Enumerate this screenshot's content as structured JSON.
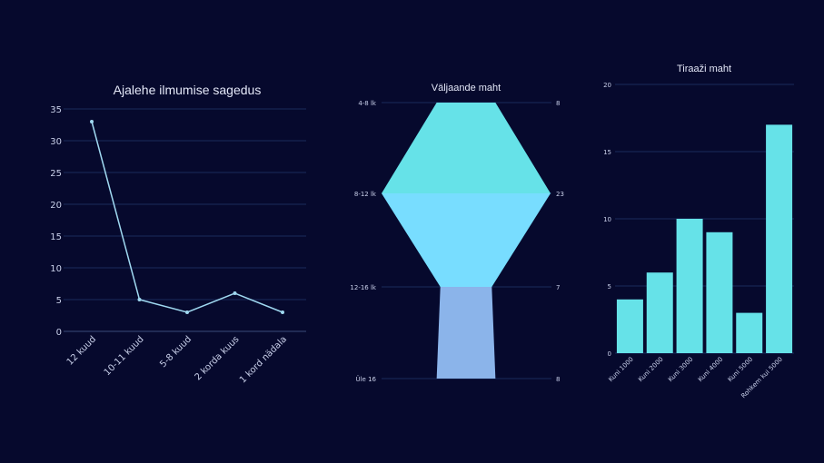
{
  "chart_data": [
    {
      "type": "line",
      "title": "Ajalehe ilmumise sagedus",
      "categories": [
        "12 kuud",
        "10-11 kuud",
        "5-8 kuud",
        "2 korda kuus",
        "1 kord nädala"
      ],
      "series": [
        {
          "values": [
            33,
            5,
            3,
            6,
            3
          ]
        }
      ],
      "yticks": [
        "0",
        "5",
        "10",
        "15",
        "20",
        "25",
        "30",
        "35"
      ],
      "ylim": [
        0,
        35
      ],
      "grid": true,
      "colors": {
        "line": "#9fd8f0",
        "grid": "#1a2a5a"
      }
    },
    {
      "type": "area",
      "title": "Väljaande maht",
      "categories": [
        "4-8 lk",
        "8-12 lk",
        "12-16 lk",
        "Üle 16"
      ],
      "values": [
        8,
        23,
        7,
        8
      ],
      "colors": {
        "upper": "#66e2e8",
        "middle": "#78ddff",
        "lower": "#8bb4ea"
      }
    },
    {
      "type": "bar",
      "title": "Tiraaži maht",
      "categories": [
        "Kuni 1000",
        "Kuni 2000",
        "Kuni 3000",
        "Kuni 4000",
        "Kuni 5000",
        "Rohkem kui 5000"
      ],
      "values": [
        4,
        6,
        10,
        9,
        3,
        17
      ],
      "yticks": [
        "0",
        "5",
        "10",
        "15",
        "20"
      ],
      "ylim": [
        0,
        20
      ],
      "grid": true,
      "colors": {
        "bar": "#66e2e8",
        "grid": "#1a2a5a"
      }
    }
  ]
}
